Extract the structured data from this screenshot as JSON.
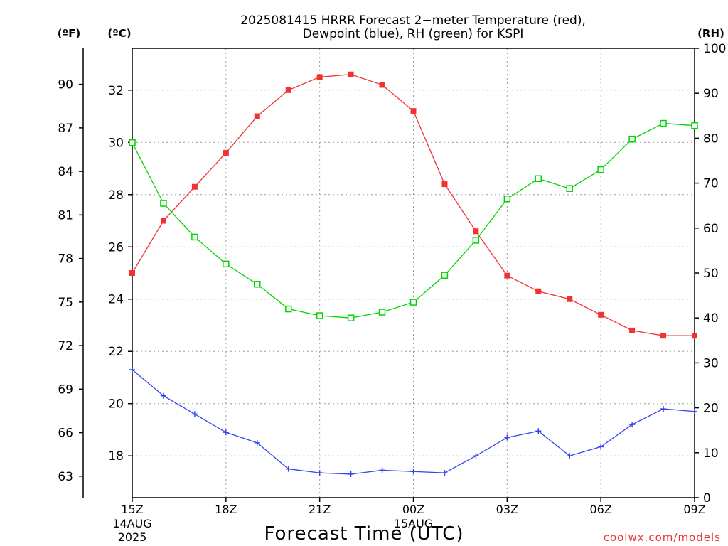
{
  "title_line1": "2025081415 HRRR Forecast 2−meter Temperature (red),",
  "title_line2": "Dewpoint (blue), RH (green) for KSPI",
  "unit_f": "(ºF)",
  "unit_c": "(ºC)",
  "unit_rh": "(RH)",
  "xlabel": "Forecast Time (UTC)",
  "credit": "coolwx.com/models",
  "chart_data": {
    "type": "line",
    "x": [
      "15Z",
      "16Z",
      "17Z",
      "18Z",
      "19Z",
      "20Z",
      "21Z",
      "22Z",
      "23Z",
      "00Z",
      "01Z",
      "02Z",
      "03Z",
      "04Z",
      "05Z",
      "06Z",
      "07Z",
      "08Z",
      "09Z"
    ],
    "x_ticks": [
      {
        "index": 0,
        "label": "15Z",
        "sub1": "14AUG",
        "sub2": "2025"
      },
      {
        "index": 3,
        "label": "18Z",
        "sub1": "",
        "sub2": ""
      },
      {
        "index": 6,
        "label": "21Z",
        "sub1": "",
        "sub2": ""
      },
      {
        "index": 9,
        "label": "00Z",
        "sub1": "15AUG",
        "sub2": ""
      },
      {
        "index": 12,
        "label": "03Z",
        "sub1": "",
        "sub2": ""
      },
      {
        "index": 15,
        "label": "06Z",
        "sub1": "",
        "sub2": ""
      },
      {
        "index": 18,
        "label": "09Z",
        "sub1": "",
        "sub2": ""
      }
    ],
    "ylim_c": [
      16.4,
      33.6
    ],
    "yticks_c": [
      18,
      20,
      22,
      24,
      26,
      28,
      30,
      32
    ],
    "yticks_f": [
      63,
      66,
      69,
      72,
      75,
      78,
      81,
      84,
      87,
      90
    ],
    "ylim_rh": [
      0,
      100
    ],
    "yticks_rh": [
      0,
      10,
      20,
      30,
      40,
      50,
      60,
      70,
      80,
      90,
      100
    ],
    "grid": true,
    "series": [
      {
        "color": "#f03232",
        "marker": "filled-square",
        "axis": "c",
        "values": [
          25.0,
          27.0,
          28.3,
          29.6,
          31.0,
          32.0,
          32.5,
          32.6,
          32.2,
          31.2,
          28.4,
          26.6,
          24.9,
          24.3,
          24.0,
          23.4,
          22.8,
          22.6,
          22.6
        ]
      },
      {
        "color": "#3246f0",
        "marker": "plus",
        "axis": "c",
        "values": [
          21.3,
          20.3,
          19.6,
          18.9,
          18.5,
          17.5,
          17.35,
          17.3,
          17.45,
          17.4,
          17.35,
          18.0,
          18.7,
          18.95,
          18.0,
          18.35,
          19.2,
          19.8,
          19.7
        ]
      },
      {
        "color": "#00d400",
        "marker": "open-square",
        "axis": "rh",
        "values": [
          79,
          65.5,
          58,
          52,
          47.5,
          42,
          40.5,
          40,
          41.3,
          43.5,
          49.5,
          57.3,
          66.5,
          71,
          68.8,
          73,
          79.8,
          83.3,
          82.8
        ]
      }
    ]
  }
}
